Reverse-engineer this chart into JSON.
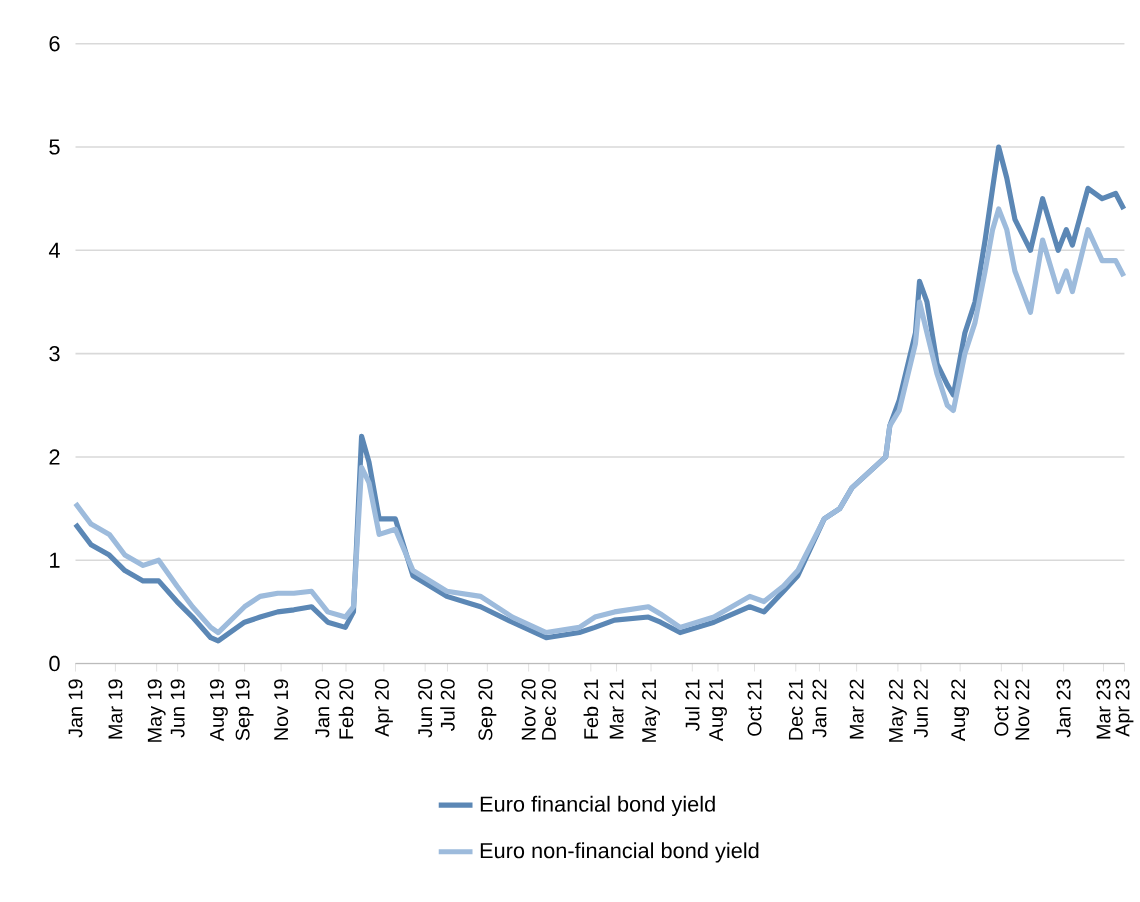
{
  "chart_data": {
    "type": "line",
    "x": [
      "2019-01-01",
      "2019-01-24",
      "2019-02-20",
      "2019-03-15",
      "2019-04-11",
      "2019-05-04",
      "2019-05-31",
      "2019-06-23",
      "2019-07-20",
      "2019-07-31",
      "2019-09-08",
      "2019-10-01",
      "2019-10-27",
      "2019-11-20",
      "2019-12-16",
      "2020-01-09",
      "2020-02-04",
      "2020-02-16",
      "2020-02-28",
      "2020-03-10",
      "2020-03-25",
      "2020-04-18",
      "2020-05-14",
      "2020-07-03",
      "2020-08-22",
      "2020-10-08",
      "2020-11-27",
      "2021-01-15",
      "2021-02-07",
      "2021-03-08",
      "2021-04-27",
      "2021-05-15",
      "2021-06-13",
      "2021-08-02",
      "2021-09-24",
      "2021-10-15",
      "2021-11-13",
      "2021-12-04",
      "2022-01-12",
      "2022-02-04",
      "2022-02-22",
      "2022-04-13",
      "2022-04-19",
      "2022-05-03",
      "2022-05-27",
      "2022-06-02",
      "2022-06-13",
      "2022-06-28",
      "2022-07-13",
      "2022-07-22",
      "2022-08-08",
      "2022-08-23",
      "2022-09-07",
      "2022-09-18",
      "2022-09-27",
      "2022-10-09",
      "2022-10-21",
      "2022-11-13",
      "2022-12-01",
      "2022-12-24",
      "2023-01-05",
      "2023-01-14",
      "2023-02-06",
      "2023-02-27",
      "2023-03-19",
      "2023-03-31"
    ],
    "series": [
      {
        "name": "Euro financial bond yield",
        "color": "#5b87b5",
        "values": [
          1.35,
          1.15,
          1.05,
          0.9,
          0.8,
          0.8,
          0.6,
          0.45,
          0.25,
          0.22,
          0.4,
          0.45,
          0.5,
          0.52,
          0.55,
          0.4,
          0.35,
          0.5,
          2.2,
          1.95,
          1.4,
          1.4,
          0.85,
          0.65,
          0.55,
          0.4,
          0.25,
          0.3,
          0.35,
          0.42,
          0.45,
          0.4,
          0.3,
          0.4,
          0.55,
          0.5,
          0.7,
          0.85,
          1.4,
          1.5,
          1.7,
          2.0,
          2.3,
          2.55,
          3.2,
          3.7,
          3.5,
          2.9,
          2.7,
          2.6,
          3.2,
          3.5,
          4.1,
          4.6,
          5.0,
          4.7,
          4.3,
          4.0,
          4.5,
          4.0,
          4.2,
          4.05,
          4.6,
          4.5,
          4.55,
          4.4
        ]
      },
      {
        "name": "Euro non-financial bond yield",
        "color": "#9dbbdc",
        "values": [
          1.55,
          1.35,
          1.25,
          1.05,
          0.95,
          1.0,
          0.75,
          0.55,
          0.35,
          0.3,
          0.55,
          0.65,
          0.68,
          0.68,
          0.7,
          0.5,
          0.45,
          0.55,
          1.9,
          1.75,
          1.25,
          1.3,
          0.9,
          0.7,
          0.65,
          0.45,
          0.3,
          0.35,
          0.45,
          0.5,
          0.55,
          0.48,
          0.35,
          0.45,
          0.65,
          0.6,
          0.75,
          0.9,
          1.4,
          1.5,
          1.7,
          2.0,
          2.3,
          2.45,
          3.1,
          3.5,
          3.2,
          2.8,
          2.5,
          2.45,
          3.0,
          3.3,
          3.8,
          4.2,
          4.4,
          4.2,
          3.8,
          3.4,
          4.1,
          3.6,
          3.8,
          3.6,
          4.2,
          3.9,
          3.9,
          3.75
        ]
      }
    ],
    "xlim": [
      "2019-01-01",
      "2023-04-01"
    ],
    "xticks": [
      {
        "value": "2019-01-01",
        "label": "Jan 19"
      },
      {
        "value": "2019-03-01",
        "label": "Mar 19"
      },
      {
        "value": "2019-05-01",
        "label": "May 19"
      },
      {
        "value": "2019-06-01",
        "label": "Jun 19"
      },
      {
        "value": "2019-08-01",
        "label": "Aug 19"
      },
      {
        "value": "2019-09-08",
        "label": "Sep 19"
      },
      {
        "value": "2019-11-01",
        "label": "Nov 19"
      },
      {
        "value": "2020-01-01",
        "label": "Jan 20"
      },
      {
        "value": "2020-02-05",
        "label": "Feb 20"
      },
      {
        "value": "2020-04-01",
        "label": "Apr 20"
      },
      {
        "value": "2020-06-01",
        "label": "Jun 20"
      },
      {
        "value": "2020-07-04",
        "label": "Jul 20"
      },
      {
        "value": "2020-09-01",
        "label": "Sep 20"
      },
      {
        "value": "2020-11-01",
        "label": "Nov 20"
      },
      {
        "value": "2020-12-01",
        "label": "Dec 20"
      },
      {
        "value": "2021-02-01",
        "label": "Feb 21"
      },
      {
        "value": "2021-03-11",
        "label": "Mar 21"
      },
      {
        "value": "2021-05-01",
        "label": "May 21"
      },
      {
        "value": "2021-07-01",
        "label": "Jul 21"
      },
      {
        "value": "2021-08-08",
        "label": "Aug 21"
      },
      {
        "value": "2021-10-01",
        "label": "Oct 21"
      },
      {
        "value": "2021-12-01",
        "label": "Dec 21"
      },
      {
        "value": "2022-01-05",
        "label": "Jan 22"
      },
      {
        "value": "2022-03-01",
        "label": "Mar 22"
      },
      {
        "value": "2022-05-01",
        "label": "May 22"
      },
      {
        "value": "2022-06-04",
        "label": "Jun 22"
      },
      {
        "value": "2022-08-01",
        "label": "Aug 22"
      },
      {
        "value": "2022-10-01",
        "label": "Oct 22"
      },
      {
        "value": "2022-11-01",
        "label": "Nov 22"
      },
      {
        "value": "2023-01-01",
        "label": "Jan 23"
      },
      {
        "value": "2023-03-01",
        "label": "Mar 23"
      },
      {
        "value": "2023-04-01",
        "label": "Apr 23"
      }
    ],
    "ylim": [
      0,
      6
    ],
    "yticks": [
      0,
      1,
      2,
      3,
      4,
      5,
      6
    ],
    "grid": "y",
    "legend": "bottom"
  }
}
